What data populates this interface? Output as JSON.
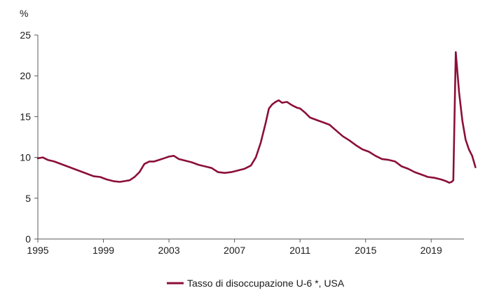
{
  "chart_data": {
    "type": "line",
    "unit_label": "%",
    "ylim": [
      0,
      25
    ],
    "y_ticks": [
      0,
      5,
      10,
      15,
      20,
      25
    ],
    "xlim": [
      1995,
      2021
    ],
    "x_ticks": [
      1995,
      1999,
      2003,
      2007,
      2011,
      2015,
      2019
    ],
    "grid": false,
    "legend_position": "bottom-center",
    "series": [
      {
        "name": "Tasso di disoccupazione U-6 *, USA",
        "color": "#8b0f3a",
        "x": [
          1995.0,
          1995.3,
          1995.6,
          1996.0,
          1996.4,
          1996.8,
          1997.2,
          1997.6,
          1998.0,
          1998.4,
          1998.8,
          1999.2,
          1999.6,
          2000.0,
          2000.3,
          2000.6,
          2000.9,
          2001.2,
          2001.5,
          2001.8,
          2002.1,
          2002.4,
          2002.7,
          2003.0,
          2003.3,
          2003.6,
          2004.0,
          2004.4,
          2004.8,
          2005.2,
          2005.6,
          2006.0,
          2006.4,
          2006.8,
          2007.2,
          2007.6,
          2008.0,
          2008.3,
          2008.6,
          2008.9,
          2009.1,
          2009.3,
          2009.5,
          2009.7,
          2009.9,
          2010.2,
          2010.5,
          2010.8,
          2011.0,
          2011.3,
          2011.6,
          2012.0,
          2012.4,
          2012.8,
          2013.2,
          2013.6,
          2014.0,
          2014.4,
          2014.8,
          2015.2,
          2015.6,
          2016.0,
          2016.4,
          2016.8,
          2017.2,
          2017.6,
          2018.0,
          2018.4,
          2018.8,
          2019.2,
          2019.6,
          2019.9,
          2020.1,
          2020.25,
          2020.35,
          2020.5,
          2020.7,
          2020.9,
          2021.1,
          2021.3,
          2021.5,
          2021.7
        ],
        "y": [
          9.9,
          10.0,
          9.7,
          9.5,
          9.2,
          8.9,
          8.6,
          8.3,
          8.0,
          7.7,
          7.6,
          7.3,
          7.1,
          7.0,
          7.1,
          7.2,
          7.6,
          8.2,
          9.2,
          9.5,
          9.5,
          9.7,
          9.9,
          10.1,
          10.2,
          9.8,
          9.6,
          9.4,
          9.1,
          8.9,
          8.7,
          8.2,
          8.1,
          8.2,
          8.4,
          8.6,
          9.0,
          10.0,
          11.8,
          14.2,
          16.0,
          16.5,
          16.8,
          17.0,
          16.7,
          16.8,
          16.4,
          16.1,
          16.0,
          15.5,
          14.9,
          14.6,
          14.3,
          14.0,
          13.3,
          12.6,
          12.1,
          11.5,
          11.0,
          10.7,
          10.2,
          9.8,
          9.7,
          9.5,
          8.9,
          8.6,
          8.2,
          7.9,
          7.6,
          7.5,
          7.3,
          7.1,
          6.9,
          7.0,
          7.2,
          22.9,
          18.0,
          14.5,
          12.2,
          11.0,
          10.2,
          8.8
        ]
      }
    ]
  }
}
